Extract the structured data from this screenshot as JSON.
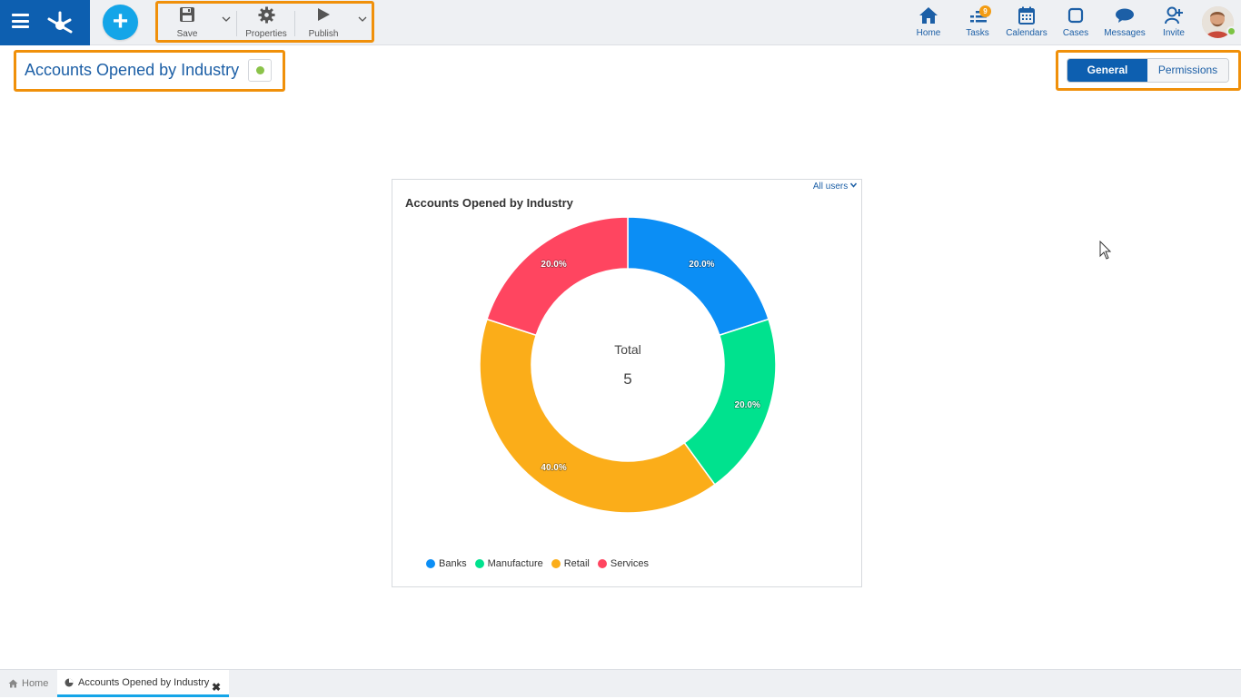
{
  "toolbar": {
    "save_label": "Save",
    "properties_label": "Properties",
    "publish_label": "Publish"
  },
  "nav": [
    {
      "label": "Home",
      "icon": "home-icon"
    },
    {
      "label": "Tasks",
      "icon": "tasks-icon",
      "badge": "9"
    },
    {
      "label": "Calendars",
      "icon": "calendar-icon"
    },
    {
      "label": "Cases",
      "icon": "cases-icon"
    },
    {
      "label": "Messages",
      "icon": "messages-icon"
    },
    {
      "label": "Invite",
      "icon": "invite-icon"
    }
  ],
  "page": {
    "title": "Accounts Opened by Industry",
    "status_color": "#8bc34a"
  },
  "tabs": {
    "general": "General",
    "permissions": "Permissions"
  },
  "card": {
    "filter_label": "All users"
  },
  "chart_data": {
    "type": "pie",
    "title": "Accounts Opened by Industry",
    "center_label": "Total",
    "center_value": "5",
    "categories": [
      "Banks",
      "Manufacture",
      "Retail",
      "Services"
    ],
    "values": [
      1,
      1,
      2,
      1
    ],
    "labels": [
      "20.0%",
      "20.0%",
      "40.0%",
      "20.0%"
    ],
    "colors": [
      "#0b8ef5",
      "#00e28e",
      "#fbad19",
      "#ff4560"
    ],
    "legend_position": "bottom-left"
  },
  "bottom_tabs": {
    "home": "Home",
    "doc": "Accounts Opened by Industry"
  },
  "colors": {
    "accent": "#0d5fb0",
    "highlight": "#f0900a",
    "add_button": "#14a5e8"
  }
}
